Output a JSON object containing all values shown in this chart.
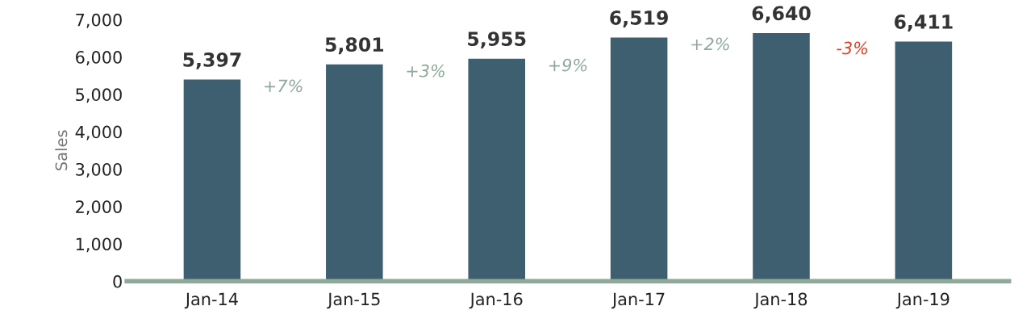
{
  "chart_data": {
    "type": "bar",
    "ylabel": "Sales",
    "categories": [
      "Jan-14",
      "Jan-15",
      "Jan-16",
      "Jan-17",
      "Jan-18",
      "Jan-19"
    ],
    "values": [
      5397,
      5801,
      5955,
      6519,
      6640,
      6411
    ],
    "color": "#3e5f6f",
    "data_labels": true,
    "value_labels": [
      "5,397",
      "5,801",
      "5,955",
      "6,519",
      "6,640",
      "6,411"
    ],
    "ylim": [
      0,
      7000
    ],
    "yticks": [
      {
        "value": 0,
        "label": "0"
      },
      {
        "value": 1000,
        "label": "1,000"
      },
      {
        "value": 2000,
        "label": "2,000"
      },
      {
        "value": 3000,
        "label": "3,000"
      },
      {
        "value": 4000,
        "label": "4,000"
      },
      {
        "value": 5000,
        "label": "5,000"
      },
      {
        "value": 6000,
        "label": "6,000"
      },
      {
        "value": 7000,
        "label": "7,000"
      }
    ],
    "grid": false,
    "annotations": [
      "+7%",
      "+3%",
      "+9%",
      "+2%",
      "-3%"
    ]
  }
}
